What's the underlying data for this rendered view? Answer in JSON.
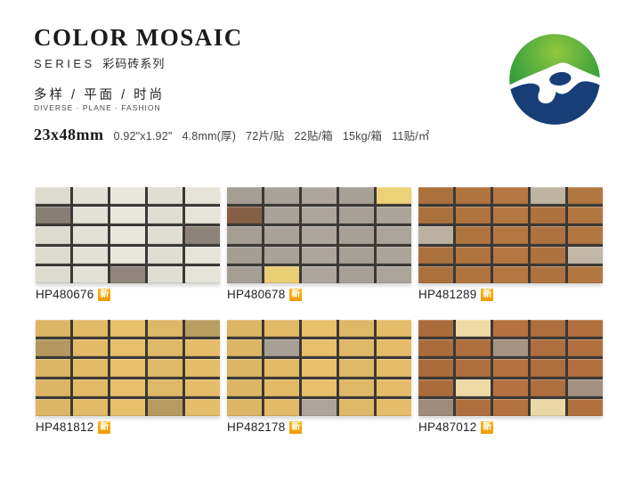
{
  "header": {
    "title": "COLOR MOSAIC",
    "series_label": "SERIES",
    "series_cn": "彩码砖系列",
    "tagline_cn": "多样 / 平面 / 时尚",
    "tagline_en": "DIVERSE · PLANE · FASHION"
  },
  "specs": {
    "size": "23x48mm",
    "items": [
      "0.92\"x1.92\"",
      "4.8mm(厚)",
      "72片/贴",
      "22贴/箱",
      "15kg/箱",
      "11贴/㎡"
    ]
  },
  "badge": {
    "label": "新",
    "bg_top": "#fdb515",
    "bg_bottom": "#ef9a00",
    "text_color": "#ffffff"
  },
  "logo": {
    "green_light": "#90c83e",
    "green_mid": "#46a63d",
    "green_dark": "#1f8e3c",
    "navy": "#183e78",
    "white": "#ffffff"
  },
  "grid": {
    "rows": 5,
    "cols": 5,
    "grout_color": "#3b3936"
  },
  "products": [
    {
      "code": "HP480676",
      "palette": {
        "base": "#e3e1d6",
        "a": "#8b8277"
      },
      "pattern": [
        ".....",
        "a....",
        "....a",
        ".....",
        "..a.."
      ]
    },
    {
      "code": "HP480678",
      "palette": {
        "base": "#a9a298",
        "a": "#e9cf74",
        "b": "#8a6249"
      },
      "pattern": [
        "....a",
        "b....",
        ".....",
        ".....",
        ".a..."
      ]
    },
    {
      "code": "HP481289",
      "palette": {
        "base": "#b0743f",
        "a": "#bfb6a4"
      },
      "pattern": [
        "...a.",
        ".....",
        "a....",
        "....a",
        "....."
      ]
    },
    {
      "code": "HP481812",
      "palette": {
        "base": "#e2ba68",
        "a": "#b89d62"
      },
      "pattern": [
        "....a",
        "a....",
        ".....",
        ".....",
        "...a."
      ]
    },
    {
      "code": "HP482178",
      "palette": {
        "base": "#e2ba68",
        "a": "#a8a095"
      },
      "pattern": [
        ".....",
        ".a...",
        ".....",
        ".....",
        "..a.."
      ]
    },
    {
      "code": "HP487012",
      "palette": {
        "base": "#b06f3e",
        "a": "#eedaa6",
        "b": "#a28f7e"
      },
      "pattern": [
        ".a...",
        "..b..",
        ".....",
        ".a..b",
        "b..a."
      ]
    }
  ]
}
